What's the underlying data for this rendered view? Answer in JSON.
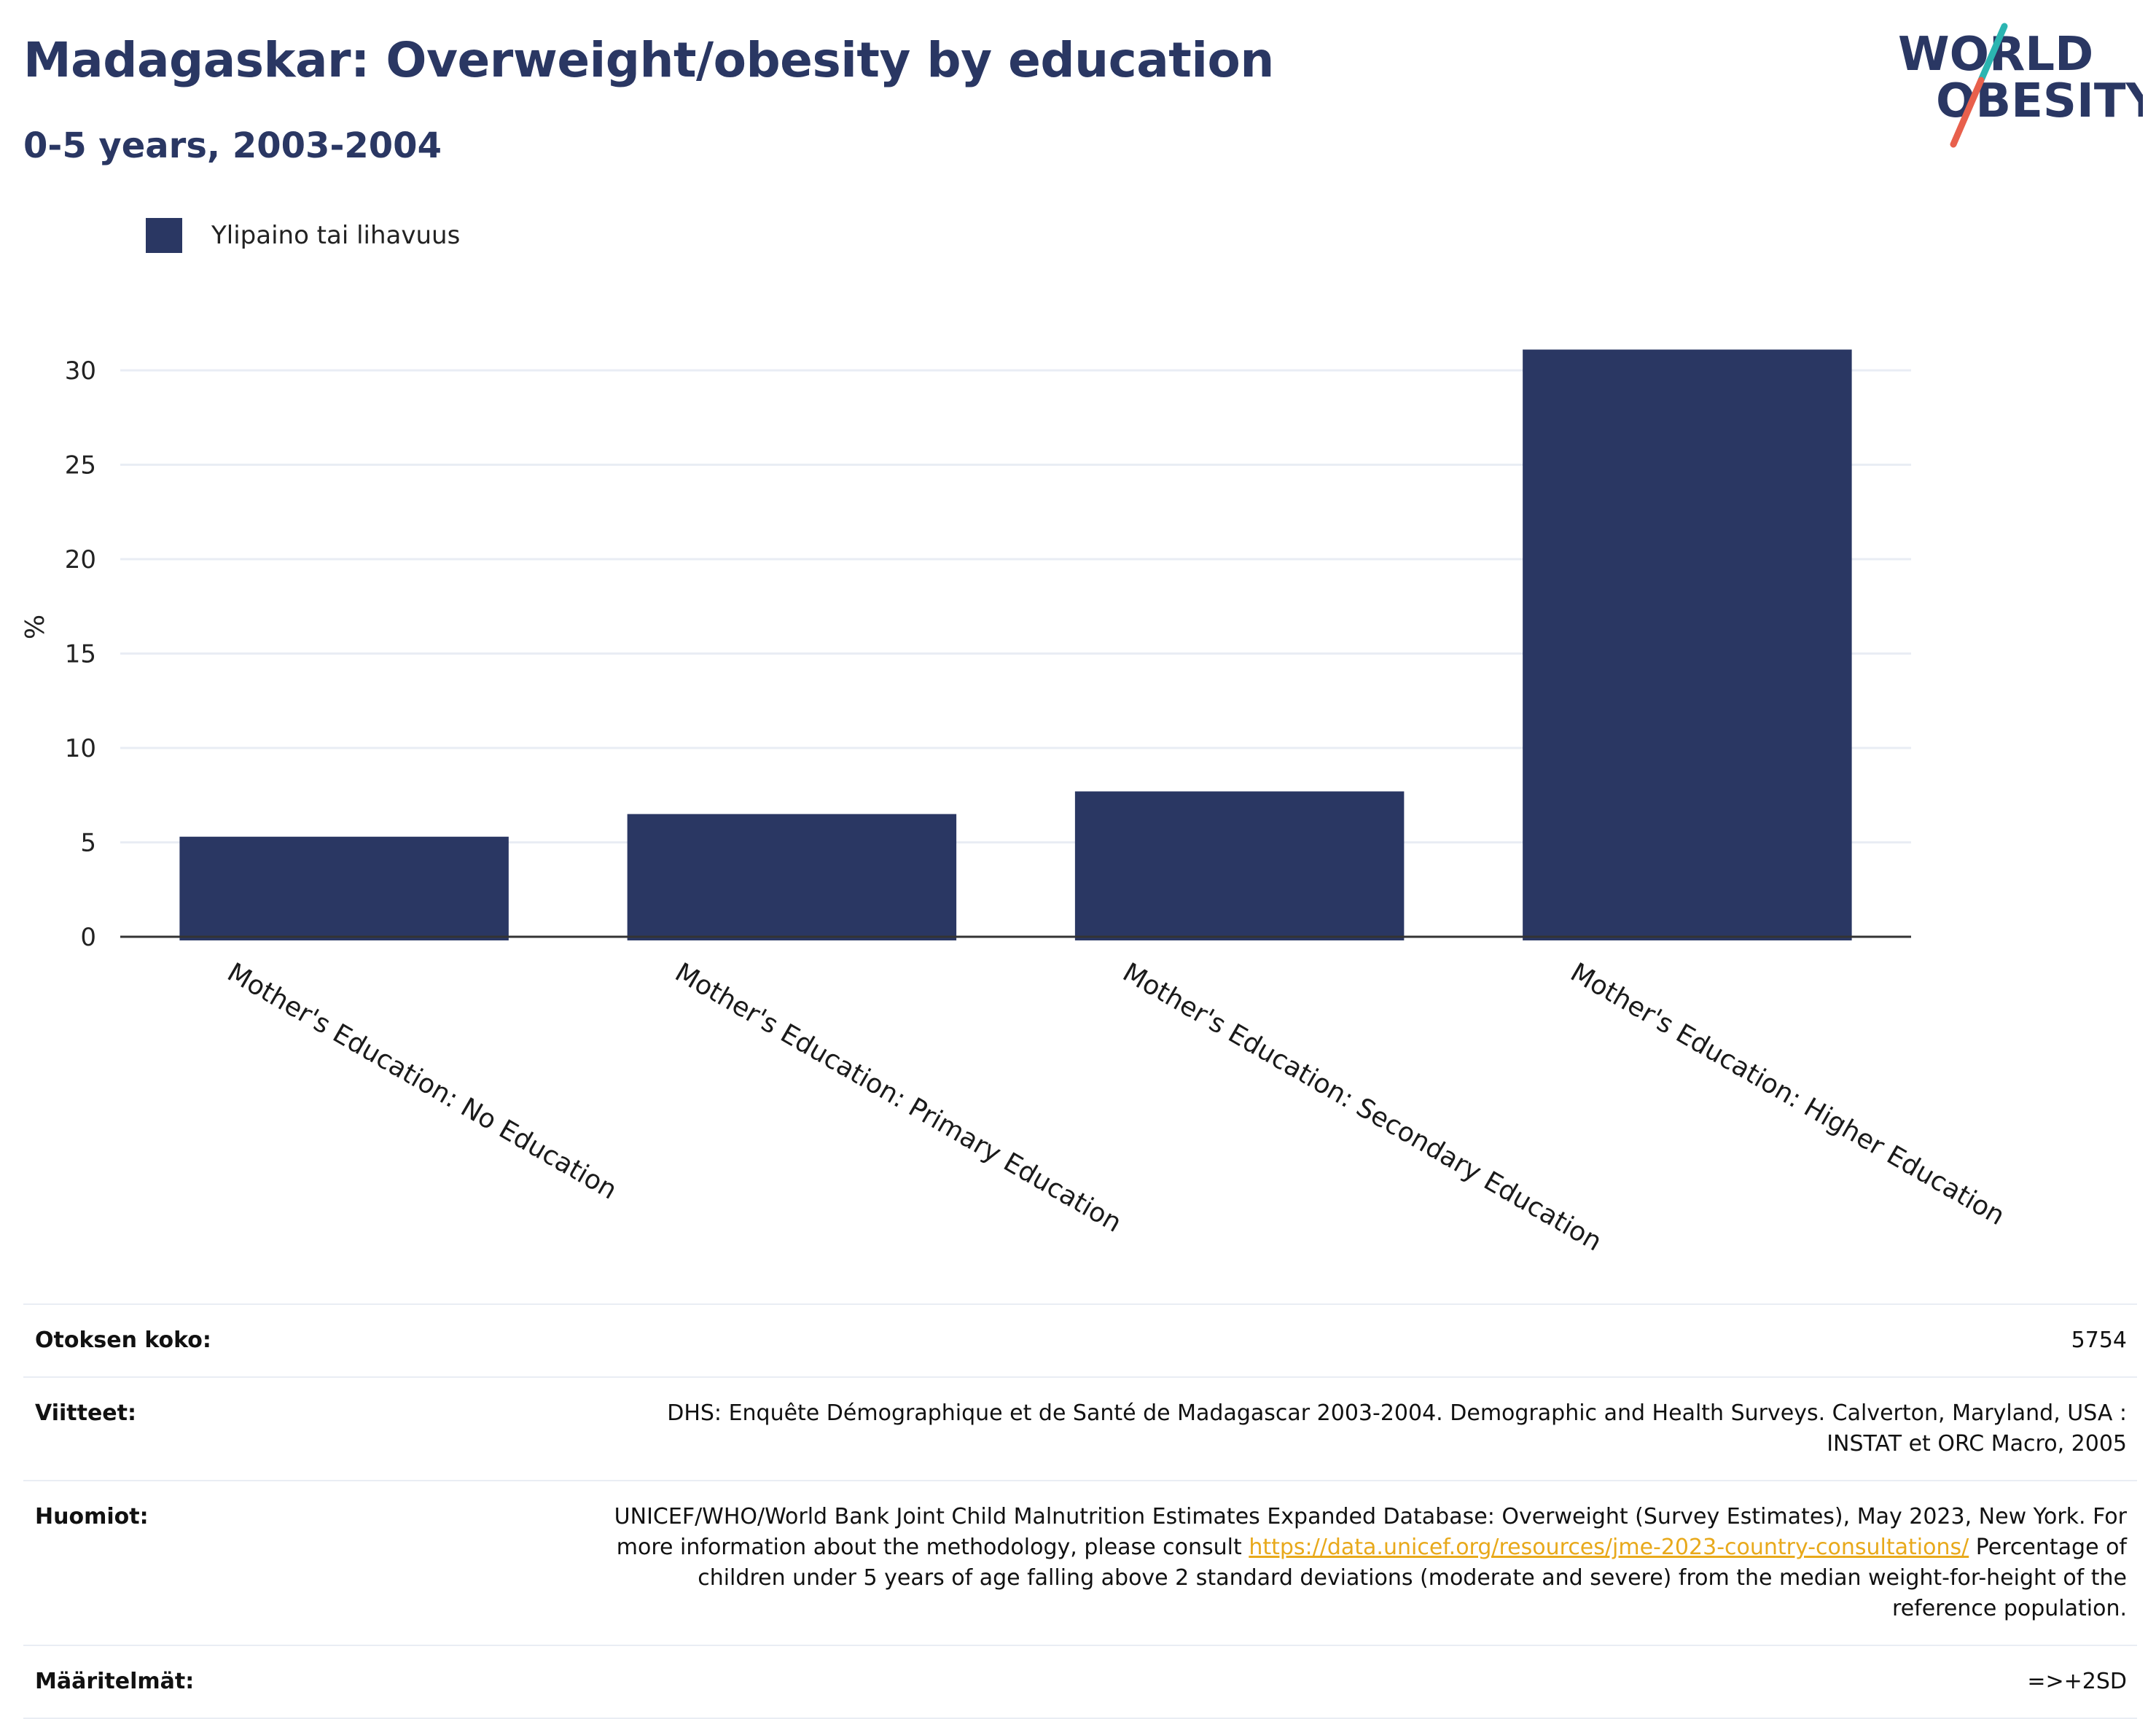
{
  "header": {
    "title": "Madagaskar: Overweight/obesity by education",
    "subtitle": "0-5 years, 2003-2004"
  },
  "logo": {
    "line1": "WORLD",
    "line2": "OBESITY",
    "colors": {
      "text": "#2a3763",
      "slash_top": "#2bb5b1",
      "slash_bottom": "#e8604c"
    }
  },
  "legend": {
    "label": "Ylipaino tai lihavuus",
    "color": "#2a3763"
  },
  "chart_data": {
    "type": "bar",
    "categories": [
      "Mother's Education: No Education",
      "Mother's Education: Primary Education",
      "Mother's Education: Secondary Education",
      "Mother's Education: Higher Education"
    ],
    "series": [
      {
        "name": "Ylipaino tai lihavuus",
        "values": [
          5.3,
          6.5,
          7.7,
          31.1
        ],
        "color": "#2a3763"
      }
    ],
    "ylabel": "%",
    "xlabel": "",
    "ylim": [
      0,
      32
    ],
    "yticks": [
      0,
      5,
      10,
      15,
      20,
      25,
      30
    ],
    "grid": true,
    "legend_position": "top-left"
  },
  "info_table": {
    "sample_label": "Otoksen koko:",
    "sample_value": "5754",
    "references_label": "Viitteet:",
    "references_value": "DHS: Enquête Démographique et de Santé de Madagascar 2003-2004. Demographic and Health Surveys. Calverton, Maryland, USA : INSTAT et ORC Macro, 2005",
    "notes_label": "Huomiot:",
    "notes_text_before": "UNICEF/WHO/World Bank Joint Child Malnutrition Estimates Expanded Database: Overweight (Survey Estimates), May 2023, New York. For more information about the methodology, please consult ",
    "notes_link": "https://data.unicef.org/resources/jme-2023-country-consultations/",
    "notes_text_after": " Percentage of children under 5 years of age falling above 2 standard deviations (moderate and severe) from the median weight-for-height of the reference population.",
    "definitions_label": "Määritelmät:",
    "definitions_value": "=>+2SD"
  }
}
